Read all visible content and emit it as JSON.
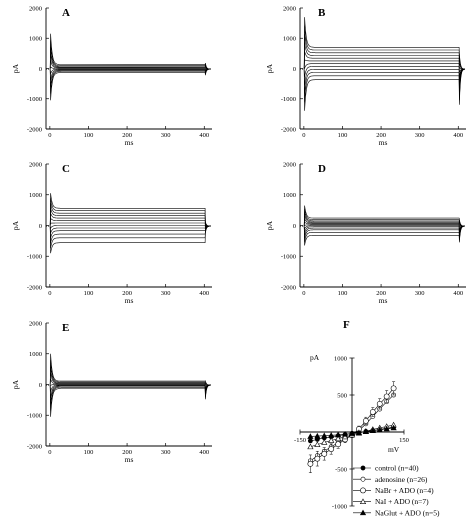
{
  "chart_data": [
    {
      "id": "A",
      "type": "line",
      "panel_label": "A",
      "xlabel": "ms",
      "ylabel": "pA",
      "xlim": [
        -10,
        420
      ],
      "ylim": [
        -2000,
        2000
      ],
      "x_ticks": [
        "0",
        "100",
        "200",
        "300",
        "400"
      ],
      "y_ticks": [
        "2000",
        "1000",
        "0",
        "-1000",
        "-2000"
      ],
      "steady_currents": [
        130,
        95,
        65,
        40,
        18,
        -2,
        -22,
        -45,
        -70,
        -100,
        -135
      ],
      "transient": {
        "peak": 1150,
        "trough": -1050,
        "tail_up": 180,
        "tail_down": -220
      },
      "holding_current": -20
    },
    {
      "id": "B",
      "type": "line",
      "panel_label": "B",
      "xlabel": "ms",
      "ylabel": "pA",
      "xlim": [
        -10,
        420
      ],
      "ylim": [
        -2000,
        2000
      ],
      "x_ticks": [
        "0",
        "100",
        "200",
        "300",
        "400"
      ],
      "y_ticks": [
        "2000",
        "1000",
        "0",
        "-1000",
        "-2000"
      ],
      "steady_currents": [
        700,
        610,
        520,
        430,
        340,
        250,
        160,
        70,
        -30,
        -130,
        -240,
        -370
      ],
      "transient": {
        "peak": 1700,
        "trough": -1400,
        "tail_up": 500,
        "tail_down": -1200
      },
      "holding_current": -20
    },
    {
      "id": "C",
      "type": "line",
      "panel_label": "C",
      "xlabel": "ms",
      "ylabel": "pA",
      "xlim": [
        -10,
        420
      ],
      "ylim": [
        -2000,
        2000
      ],
      "x_ticks": [
        "0",
        "100",
        "200",
        "300",
        "400"
      ],
      "y_ticks": [
        "2000",
        "1000",
        "0",
        "-1000",
        "-2000"
      ],
      "steady_currents": [
        560,
        480,
        400,
        320,
        240,
        160,
        80,
        0,
        -80,
        -170,
        -280,
        -400,
        -560
      ],
      "transient": {
        "peak": 1050,
        "trough": -900,
        "tail_up": 120,
        "tail_down": -250
      },
      "holding_current": -20
    },
    {
      "id": "D",
      "type": "line",
      "panel_label": "D",
      "xlabel": "ms",
      "ylabel": "pA",
      "xlim": [
        -10,
        420
      ],
      "ylim": [
        -2000,
        2000
      ],
      "x_ticks": [
        "0",
        "100",
        "200",
        "300",
        "400"
      ],
      "y_ticks": [
        "2000",
        "1000",
        "0",
        "-1000",
        "-2000"
      ],
      "steady_currents": [
        240,
        190,
        150,
        115,
        85,
        55,
        25,
        -5,
        -40,
        -85,
        -140,
        -220,
        -320
      ],
      "transient": {
        "peak": 650,
        "trough": -650,
        "tail_up": 200,
        "tail_down": -550
      },
      "holding_current": -20
    },
    {
      "id": "E",
      "type": "line",
      "panel_label": "E",
      "xlabel": "ms",
      "ylabel": "pA",
      "xlim": [
        -10,
        420
      ],
      "ylim": [
        -2000,
        2000
      ],
      "x_ticks": [
        "0",
        "100",
        "200",
        "300",
        "400"
      ],
      "y_ticks": [
        "2000",
        "1000",
        "0",
        "-1000",
        "-2000"
      ],
      "steady_currents": [
        110,
        80,
        55,
        35,
        15,
        -2,
        -20,
        -40,
        -65,
        -95,
        -130
      ],
      "transient": {
        "peak": 1000,
        "trough": -1050,
        "tail_up": 120,
        "tail_down": -480
      },
      "holding_current": -20
    },
    {
      "id": "F",
      "type": "line",
      "panel_label": "F",
      "xlabel": "mV",
      "ylabel": "pA",
      "xlim": [
        -150,
        150
      ],
      "ylim": [
        -1000,
        1000
      ],
      "x_ticks": [
        "-150",
        "150"
      ],
      "y_ticks": [
        "1000",
        "500",
        "-500",
        "-1000"
      ],
      "x_values": [
        -120,
        -100,
        -80,
        -60,
        -40,
        -20,
        0,
        20,
        40,
        60,
        80,
        100,
        120
      ],
      "series": [
        {
          "name": "control (n=40)",
          "marker": "filled-circle",
          "values": [
            -120,
            -100,
            -80,
            -65,
            -50,
            -35,
            -18,
            -5,
            8,
            20,
            35,
            50,
            65
          ]
        },
        {
          "name": "adenosine (n=26)",
          "marker": "open-circle",
          "values": [
            -390,
            -320,
            -260,
            -200,
            -145,
            -90,
            -40,
            20,
            110,
            210,
            310,
            410,
            500
          ]
        },
        {
          "name": "NaBr + ADO (n=4)",
          "marker": "open-circle-large",
          "values": [
            -430,
            -360,
            -295,
            -230,
            -165,
            -100,
            -40,
            40,
            150,
            270,
            380,
            480,
            590
          ],
          "errors": [
            120,
            100,
            85,
            70,
            55,
            45,
            35,
            40,
            50,
            60,
            70,
            80,
            90
          ]
        },
        {
          "name": "NaI + ADO (n=7)",
          "marker": "open-triangle",
          "values": [
            -200,
            -170,
            -140,
            -115,
            -90,
            -65,
            -40,
            -15,
            10,
            35,
            55,
            75,
            95
          ]
        },
        {
          "name": "NaGlut + ADO (n=5)",
          "marker": "filled-triangle",
          "values": [
            -60,
            -55,
            -50,
            -45,
            -38,
            -30,
            -20,
            -8,
            5,
            18,
            30,
            42,
            55
          ]
        }
      ]
    }
  ]
}
